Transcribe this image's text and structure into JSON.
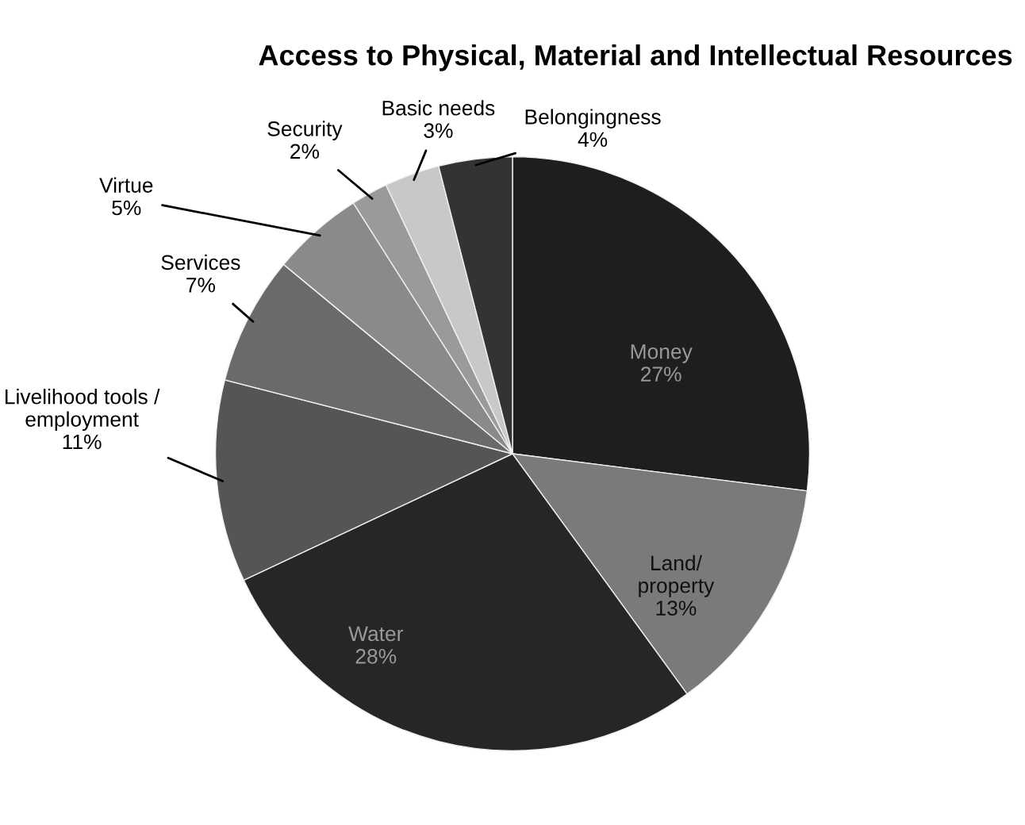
{
  "chart_data": {
    "type": "pie",
    "title": "Access to Physical, Material and Intellectual Resources",
    "categories": [
      "Money",
      "Land/\nproperty",
      "Water",
      "Livelihood tools /\nemployment",
      "Services",
      "Virtue",
      "Security",
      "Basic needs",
      "Belongingness"
    ],
    "values": [
      27,
      13,
      28,
      11,
      7,
      5,
      2,
      3,
      4
    ],
    "value_labels": [
      "27%",
      "13%",
      "28%",
      "11%",
      "7%",
      "5%",
      "2%",
      "3%",
      "4%"
    ],
    "colors": [
      "#1e1e1e",
      "#7a7a7a",
      "#262626",
      "#555555",
      "#6a6a6a",
      "#8a8a8a",
      "#9a9a9a",
      "#c8c8c8",
      "#333333"
    ],
    "legend": false
  }
}
